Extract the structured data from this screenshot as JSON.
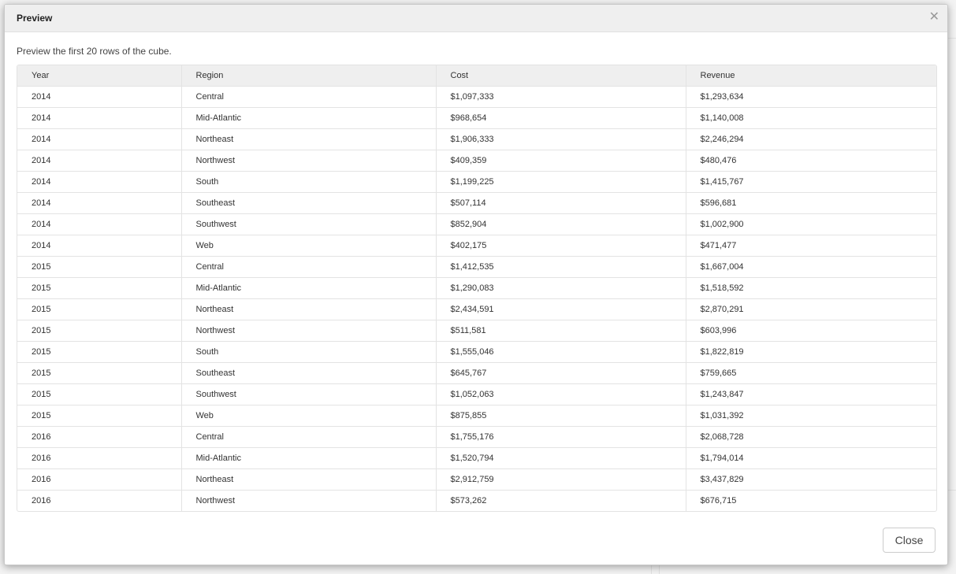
{
  "dialog": {
    "title": "Preview",
    "description": "Preview the first 20 rows of the cube.",
    "close_label": "Close",
    "close_icon": "close-icon"
  },
  "table": {
    "columns": [
      "Year",
      "Region",
      "Cost",
      "Revenue"
    ],
    "rows": [
      [
        "2014",
        "Central",
        "$1,097,333",
        "$1,293,634"
      ],
      [
        "2014",
        "Mid-Atlantic",
        "$968,654",
        "$1,140,008"
      ],
      [
        "2014",
        "Northeast",
        "$1,906,333",
        "$2,246,294"
      ],
      [
        "2014",
        "Northwest",
        "$409,359",
        "$480,476"
      ],
      [
        "2014",
        "South",
        "$1,199,225",
        "$1,415,767"
      ],
      [
        "2014",
        "Southeast",
        "$507,114",
        "$596,681"
      ],
      [
        "2014",
        "Southwest",
        "$852,904",
        "$1,002,900"
      ],
      [
        "2014",
        "Web",
        "$402,175",
        "$471,477"
      ],
      [
        "2015",
        "Central",
        "$1,412,535",
        "$1,667,004"
      ],
      [
        "2015",
        "Mid-Atlantic",
        "$1,290,083",
        "$1,518,592"
      ],
      [
        "2015",
        "Northeast",
        "$2,434,591",
        "$2,870,291"
      ],
      [
        "2015",
        "Northwest",
        "$511,581",
        "$603,996"
      ],
      [
        "2015",
        "South",
        "$1,555,046",
        "$1,822,819"
      ],
      [
        "2015",
        "Southeast",
        "$645,767",
        "$759,665"
      ],
      [
        "2015",
        "Southwest",
        "$1,052,063",
        "$1,243,847"
      ],
      [
        "2015",
        "Web",
        "$875,855",
        "$1,031,392"
      ],
      [
        "2016",
        "Central",
        "$1,755,176",
        "$2,068,728"
      ],
      [
        "2016",
        "Mid-Atlantic",
        "$1,520,794",
        "$1,794,014"
      ],
      [
        "2016",
        "Northeast",
        "$2,912,759",
        "$3,437,829"
      ],
      [
        "2016",
        "Northwest",
        "$573,262",
        "$676,715"
      ]
    ]
  }
}
